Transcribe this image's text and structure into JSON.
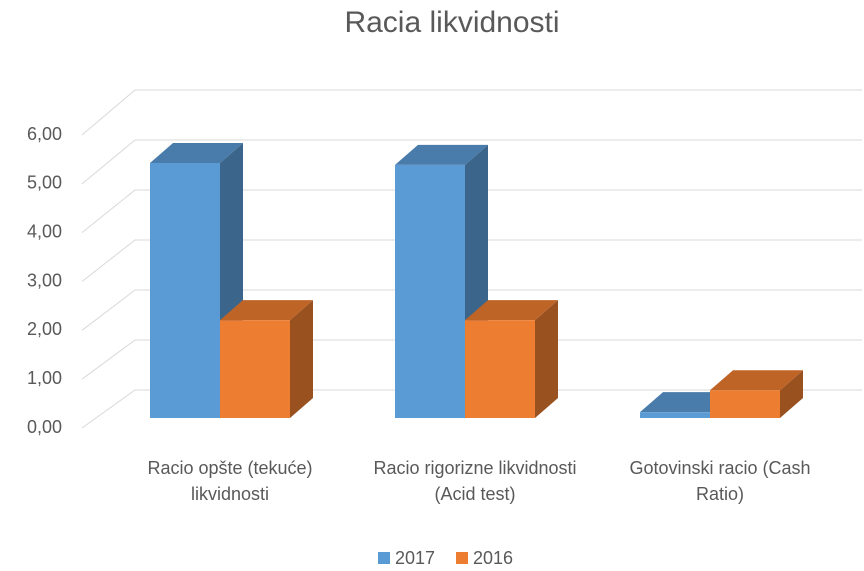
{
  "chart_data": {
    "type": "bar3d",
    "title": "Racia likvidnosti",
    "categories": [
      "Racio opšte (tekuće) likvidnosti",
      "Racio rigorizne likvidnosti (Acid test)",
      "Gotovinski racio (Cash Ratio)"
    ],
    "series": [
      {
        "name": "2017",
        "color": "#5b9bd5",
        "values": [
          5.24,
          5.2,
          0.12
        ]
      },
      {
        "name": "2016",
        "color": "#ed7d31",
        "values": [
          2.01,
          2.01,
          0.57
        ]
      }
    ],
    "ylim": [
      0,
      6
    ],
    "yticks": [
      {
        "value": 0,
        "label": "0,00"
      },
      {
        "value": 1,
        "label": "1,00"
      },
      {
        "value": 2,
        "label": "2,00"
      },
      {
        "value": 3,
        "label": "3,00"
      },
      {
        "value": 4,
        "label": "4,00"
      },
      {
        "value": 5,
        "label": "5,00"
      },
      {
        "value": 6,
        "label": "6,00"
      }
    ],
    "grid": true,
    "legend": "bottom"
  }
}
